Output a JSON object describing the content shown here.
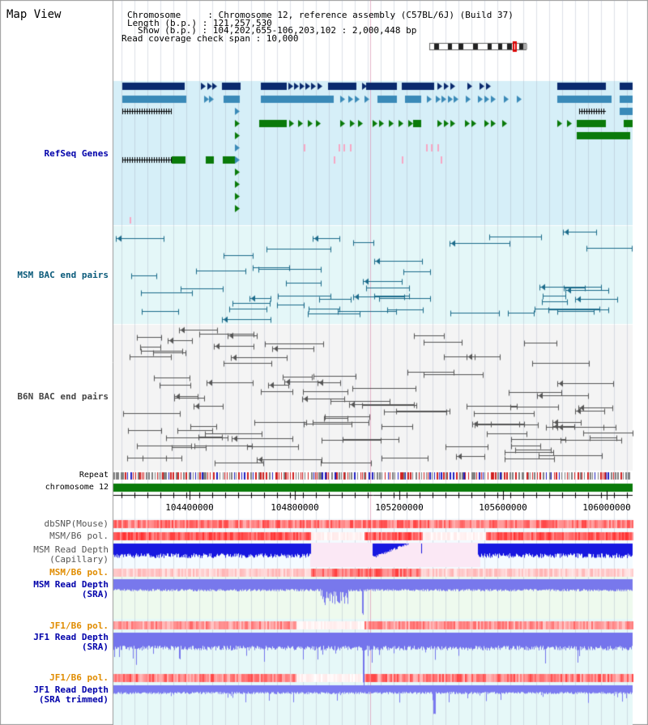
{
  "title": "Map View",
  "info": {
    "chromosome_line": "Chromosome     : Chromosome 12, reference assembly (C57BL/6J) (Build 37)",
    "length_line": "Length (b.p.) : 121,257,530",
    "show_line": "Show (b.p.) : 104,202,655-106,203,102 : 2,000,448 bp",
    "coverage_line": "Read coverage check span : 10,000"
  },
  "tracks": {
    "refseq": "RefSeq Genes",
    "msm_bac": "MSM BAC end pairs",
    "b6n_bac": "B6N BAC end pairs",
    "repeat": "Repeat",
    "chromosome": "chromosome 12",
    "dbsnp": "dbSNP(Mouse)",
    "msm_b6_pol": "MSM/B6 pol.",
    "msm_depth_cap_1": "MSM Read Depth",
    "msm_depth_cap_2": "(Capillary)",
    "msm_b6_pol_2": "MSM/B6 pol.",
    "msm_depth_sra_1": "MSM Read Depth",
    "msm_depth_sra_2": "(SRA)",
    "jf1_b6_pol": "JF1/B6 pol.",
    "jf1_depth_sra_1": "JF1 Read Depth",
    "jf1_depth_sra_2": "(SRA)",
    "jf1_b6_pol_2": "JF1/B6 pol.",
    "jf1_depth_trim_1": "JF1 Read Depth",
    "jf1_depth_trim_2": "(SRA trimmed)"
  },
  "axis": {
    "ticks": [
      "104400000",
      "104800000",
      "105200000",
      "105600000",
      "106000000"
    ]
  },
  "colors": {
    "refseq_dark": "#0a2a6e",
    "refseq_mid": "#3a8ab8",
    "refseq_green": "#0a7a0a",
    "msm_label": "#0a5a7a",
    "blue_label": "#0000aa",
    "orange_label": "#e08c00",
    "gray_label": "#444444"
  }
}
